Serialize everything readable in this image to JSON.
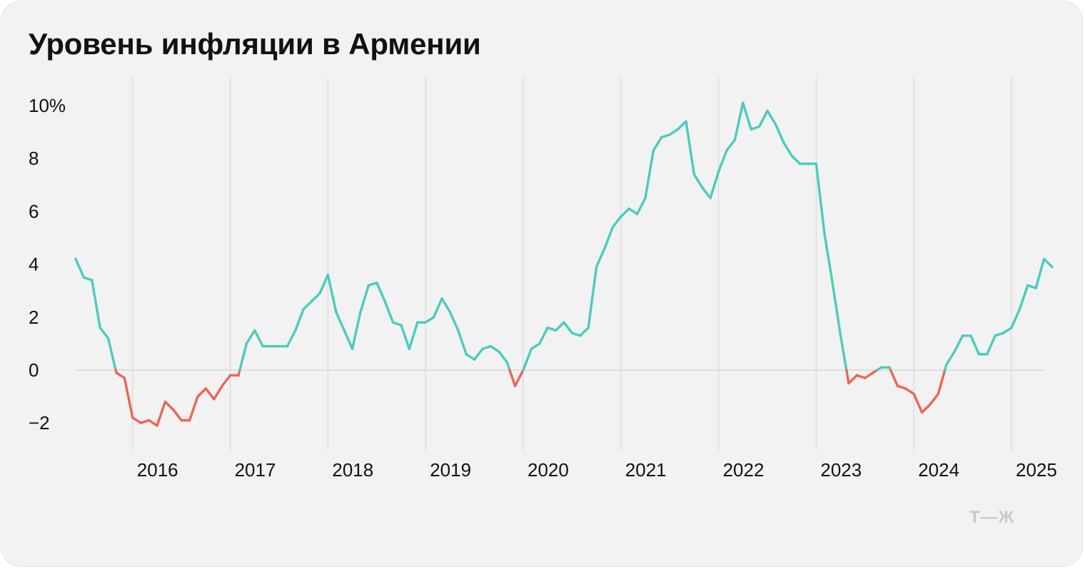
{
  "chart_data": {
    "type": "line",
    "title": "Уровень инфляции в Армении",
    "ylabel": "",
    "xlabel": "",
    "ylim": [
      -2.3,
      10.3
    ],
    "y_ticks": [
      {
        "value": 10,
        "label": "10%"
      },
      {
        "value": 8,
        "label": "8"
      },
      {
        "value": 6,
        "label": "6"
      },
      {
        "value": 4,
        "label": "4"
      },
      {
        "value": 2,
        "label": "2"
      },
      {
        "value": 0,
        "label": "0"
      },
      {
        "value": -2,
        "label": "−2"
      }
    ],
    "x_ticks": [
      "2016",
      "2017",
      "2018",
      "2019",
      "2020",
      "2021",
      "2022",
      "2023",
      "2024",
      "2025"
    ],
    "grid": "vertical lines at year starts, horizontal line at 0",
    "colors": {
      "positive": "#4ccbbf",
      "negative": "#eb6655",
      "grid": "#d9d9d9",
      "zero_line": "#d6d6d6"
    },
    "series": [
      {
        "x_start": "2015-06",
        "frequency": "monthly",
        "values": [
          4.2,
          3.5,
          3.4,
          1.6,
          1.2,
          -0.1,
          -0.3,
          -1.8,
          -2.0,
          -1.9,
          -2.1,
          -1.2,
          -1.5,
          -1.9,
          -1.9,
          -1.0,
          -0.7,
          -1.1,
          -0.6,
          -0.2,
          -0.2,
          1.0,
          1.5,
          0.9,
          0.9,
          0.9,
          0.9,
          1.5,
          2.3,
          2.6,
          2.9,
          3.6,
          2.2,
          1.5,
          0.8,
          2.2,
          3.2,
          3.3,
          2.6,
          1.8,
          1.7,
          0.8,
          1.8,
          1.8,
          2.0,
          2.7,
          2.2,
          1.5,
          0.6,
          0.4,
          0.8,
          0.9,
          0.7,
          0.3,
          -0.6,
          0.0,
          0.8,
          1.0,
          1.6,
          1.5,
          1.8,
          1.4,
          1.3,
          1.6,
          3.9,
          4.6,
          5.4,
          5.8,
          6.1,
          5.9,
          6.5,
          8.3,
          8.8,
          8.9,
          9.1,
          9.4,
          7.4,
          6.9,
          6.5,
          7.5,
          8.3,
          8.7,
          10.1,
          9.1,
          9.2,
          9.8,
          9.3,
          8.6,
          8.1,
          7.8,
          7.8,
          7.8,
          5.2,
          3.3,
          1.3,
          -0.5,
          -0.2,
          -0.3,
          -0.1,
          0.1,
          0.1,
          -0.6,
          -0.7,
          -0.9,
          -1.6,
          -1.3,
          -0.9,
          0.2,
          0.7,
          1.3,
          1.3,
          0.6,
          0.6,
          1.3,
          1.4,
          1.6,
          2.3,
          3.2,
          3.1,
          4.2,
          3.9
        ]
      }
    ]
  },
  "brand": "Т—Ж"
}
